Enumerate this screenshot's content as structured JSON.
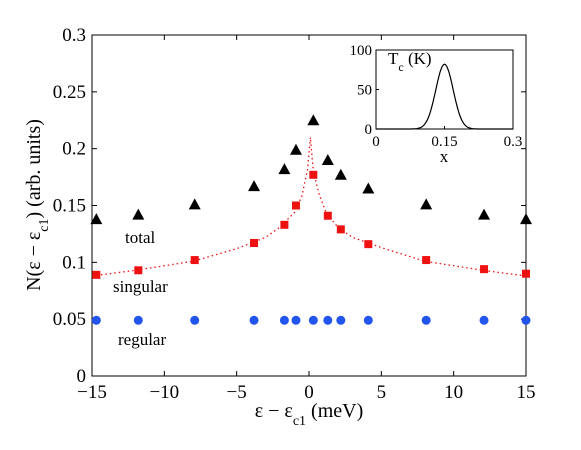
{
  "chart_data": {
    "type": "scatter",
    "xlabel": "ε − ε",
    "xlabel_sub": "c1",
    "xlabel_unit": " (meV)",
    "ylabel": "N(ε − ε",
    "ylabel_sub": "c1",
    "ylabel_unit": ") (arb. units)",
    "xlim": [
      -15,
      15
    ],
    "ylim": [
      0,
      0.3
    ],
    "x_ticks": [
      -15,
      -10,
      -5,
      0,
      5,
      10,
      15
    ],
    "x_tick_labels": [
      "−15",
      "−10",
      "−5",
      "0",
      "5",
      "10",
      "15"
    ],
    "y_ticks": [
      0,
      0.05,
      0.1,
      0.15,
      0.2,
      0.25,
      0.3
    ],
    "y_tick_labels": [
      "0",
      "0.05",
      "0.1",
      "0.15",
      "0.2",
      "0.25",
      "0.3"
    ],
    "grid": false,
    "series": [
      {
        "name": "total",
        "marker": "triangle",
        "color": "#000000",
        "label_color": "#000000",
        "x": [
          -14.7,
          -11.8,
          -7.9,
          -3.8,
          -1.7,
          -0.9,
          0.3,
          1.3,
          2.2,
          4.1,
          8.1,
          12.1,
          15
        ],
        "y": [
          0.138,
          0.142,
          0.151,
          0.167,
          0.182,
          0.199,
          0.225,
          0.19,
          0.177,
          0.165,
          0.151,
          0.142,
          0.138
        ]
      },
      {
        "name": "singular",
        "marker": "square",
        "color": "#ee1111",
        "label_color": "#ee1111",
        "x": [
          -14.7,
          -11.8,
          -7.9,
          -3.8,
          -1.7,
          -0.9,
          0.3,
          1.3,
          2.2,
          4.1,
          8.1,
          12.1,
          15
        ],
        "y": [
          0.089,
          0.093,
          0.102,
          0.117,
          0.133,
          0.15,
          0.177,
          0.141,
          0.129,
          0.116,
          0.102,
          0.094,
          0.09
        ]
      },
      {
        "name": "regular",
        "marker": "circle",
        "color": "#2255ee",
        "label_color": "#2255ee",
        "x": [
          -14.7,
          -11.8,
          -7.9,
          -3.8,
          -1.7,
          -0.9,
          0.3,
          1.3,
          2.2,
          4.1,
          8.1,
          12.1,
          15
        ],
        "y": [
          0.049,
          0.049,
          0.049,
          0.049,
          0.049,
          0.049,
          0.049,
          0.049,
          0.049,
          0.049,
          0.049,
          0.049,
          0.049
        ]
      }
    ],
    "fit_curve": {
      "style": "dotted",
      "color": "#ee1111",
      "peak_x": 0.2,
      "x": [
        -15,
        -12,
        -8,
        -5,
        -3,
        -2,
        -1,
        -0.5,
        -0.1,
        0.1,
        0.3,
        0.7,
        1.2,
        2,
        3,
        5,
        8,
        12,
        15
      ],
      "y": [
        0.088,
        0.093,
        0.101,
        0.112,
        0.122,
        0.131,
        0.144,
        0.158,
        0.182,
        0.21,
        0.18,
        0.16,
        0.143,
        0.131,
        0.122,
        0.113,
        0.101,
        0.093,
        0.088
      ]
    },
    "inset": {
      "type": "line",
      "title": "T",
      "title_sub": "c",
      "title_unit": " (K)",
      "xlabel": "x",
      "xlim": [
        0,
        0.3
      ],
      "ylim": [
        0,
        100
      ],
      "x_ticks": [
        0,
        0.15,
        0.3
      ],
      "x_tick_labels": [
        "0",
        "0.15",
        "0.3"
      ],
      "y_ticks": [
        0,
        50,
        100
      ],
      "y_tick_labels": [
        "0",
        "50",
        "100"
      ],
      "peak_x": 0.15,
      "peak_y": 82,
      "width": 0.019
    }
  }
}
